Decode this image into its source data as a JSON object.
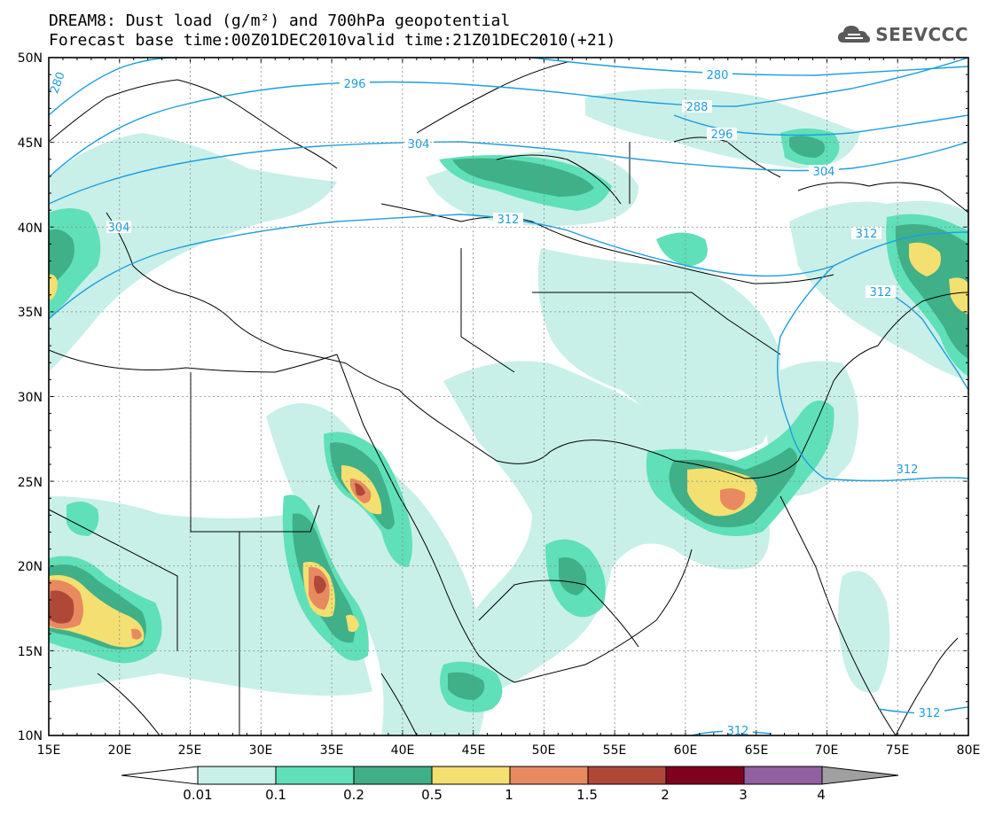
{
  "title": {
    "line1": "DREAM8: Dust load (g/m²) and 700hPa geopotential",
    "line2": "Forecast base time:00Z01DEC2010valid time:21Z01DEC2010(+21)"
  },
  "logo": {
    "text": "SEEVCCC",
    "icon": "cloud-icon"
  },
  "map": {
    "lon_range": [
      15,
      80
    ],
    "lat_range": [
      10,
      50
    ],
    "lon_ticks": [
      "15E",
      "20E",
      "25E",
      "30E",
      "35E",
      "40E",
      "45E",
      "50E",
      "55E",
      "60E",
      "65E",
      "70E",
      "75E",
      "80E"
    ],
    "lat_ticks": [
      "10N",
      "15N",
      "20N",
      "25N",
      "30N",
      "35N",
      "40N",
      "45N",
      "50N"
    ],
    "contour_labels": [
      "280",
      "296",
      "304",
      "312",
      "312",
      "312",
      "312",
      "312",
      "288",
      "296",
      "304",
      "280",
      "304"
    ]
  },
  "colorbar": {
    "labels": [
      "0.01",
      "0.1",
      "0.2",
      "0.5",
      "1",
      "1.5",
      "2",
      "3",
      "4"
    ],
    "colors": [
      "#ffffff",
      "#c8f0e8",
      "#5fe0b8",
      "#3fb088",
      "#f4e070",
      "#e88a60",
      "#b04838",
      "#800020",
      "#9060a0",
      "#a0a0a0"
    ]
  },
  "palette": {
    "level1": "#c8f0e8",
    "level2": "#5fe0b8",
    "level3": "#3fb088",
    "level4": "#f4e070",
    "level5": "#e88a60",
    "level6": "#b04838",
    "contour": "#1e9ee0"
  }
}
